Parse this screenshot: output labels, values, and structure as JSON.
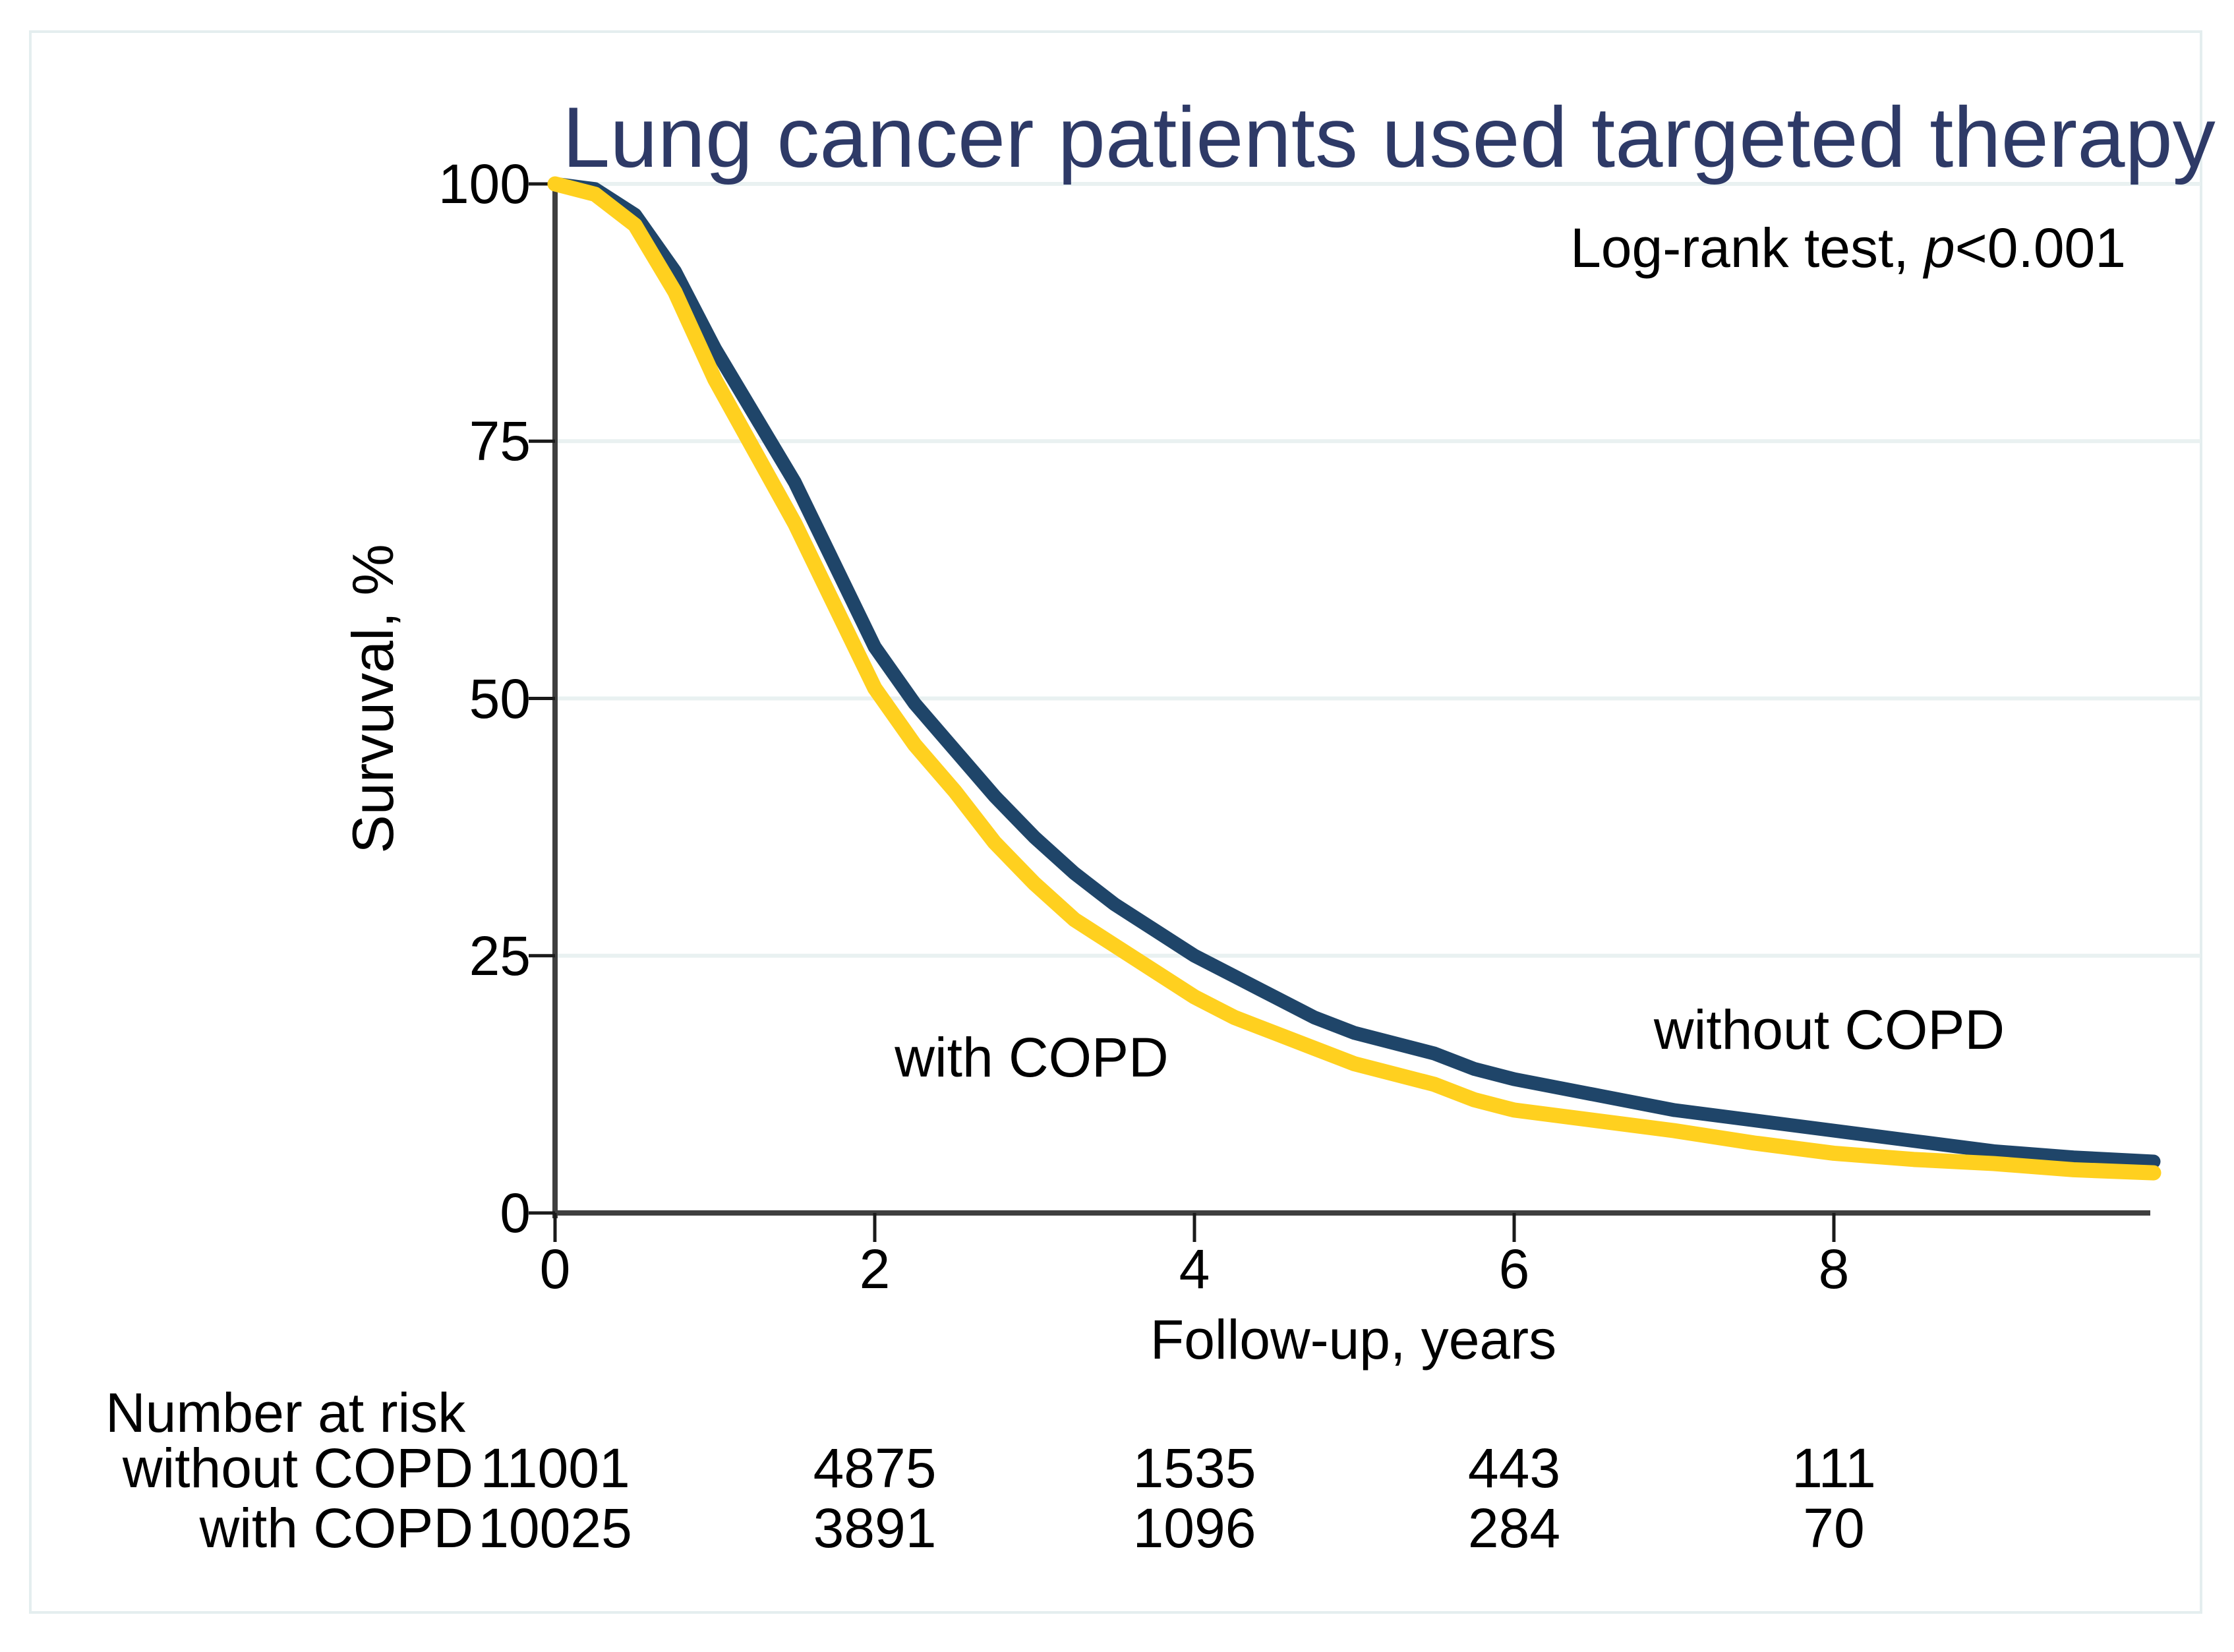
{
  "figure": {
    "title": "Lung cancer patients used targeted therapy",
    "annotation": {
      "prefix": "Log-rank test, ",
      "p": "p",
      "value": "<0.001"
    }
  },
  "y_axis": {
    "label": "Survuval, %",
    "ticks": [
      {
        "label": "100"
      },
      {
        "label": "75"
      },
      {
        "label": "50"
      },
      {
        "label": "25"
      },
      {
        "label": "0"
      }
    ]
  },
  "x_axis": {
    "label": "Follow-up, years",
    "ticks": [
      {
        "label": "0"
      },
      {
        "label": "2"
      },
      {
        "label": "4"
      },
      {
        "label": "6"
      },
      {
        "label": "8"
      }
    ]
  },
  "curve_labels": {
    "with": "with COPD",
    "without": "without COPD"
  },
  "risk_table": {
    "header": "Number at risk",
    "rows": [
      {
        "label": "without COPD",
        "values": [
          "11001",
          "4875",
          "1535",
          "443",
          "111"
        ]
      },
      {
        "label": "with COPD",
        "values": [
          "10025",
          "3891",
          "1096",
          "284",
          "70"
        ]
      }
    ]
  },
  "colors": {
    "without_copd": "#1F4569",
    "with_copd": "#FFD01F",
    "title": "#2E3A67",
    "grid": "#E9F1F1",
    "axis": "#3F3F3F",
    "tick": "#1A1A1A",
    "frame": "#E4EEEF"
  },
  "chart_data": {
    "type": "line",
    "title": "Lung cancer patients used targeted therapy",
    "subtitle": "Log-rank test, p<0.001",
    "xlabel": "Follow-up, years",
    "ylabel": "Survuval, %",
    "xlim": [
      0,
      10
    ],
    "ylim": [
      0,
      100
    ],
    "x_ticks": [
      0,
      2,
      4,
      6,
      8
    ],
    "y_ticks": [
      0,
      25,
      50,
      75,
      100
    ],
    "grid": "horizontal",
    "legend_position": "labels drawn inside plot area",
    "series": [
      {
        "name": "without COPD",
        "color": "#1F4569",
        "line_width": 21,
        "x": [
          0,
          0.25,
          0.5,
          0.75,
          1,
          1.25,
          1.5,
          1.75,
          2,
          2.25,
          2.5,
          2.75,
          3,
          3.25,
          3.5,
          3.75,
          4,
          4.25,
          4.5,
          4.75,
          5,
          5.25,
          5.5,
          5.75,
          6,
          6.5,
          7,
          7.5,
          8,
          8.5,
          9,
          9.5,
          10
        ],
        "y": [
          100,
          99.5,
          97,
          91.5,
          84,
          77.5,
          71,
          63,
          55,
          49.5,
          45,
          40.5,
          36.5,
          33,
          30,
          27.5,
          25,
          23,
          21,
          19,
          17.5,
          16.5,
          15.5,
          14,
          13,
          11.5,
          10,
          9,
          8,
          7,
          6,
          5.4,
          5
        ]
      },
      {
        "name": "with COPD",
        "color": "#FFD01F",
        "line_width": 23,
        "x": [
          0,
          0.25,
          0.5,
          0.75,
          1,
          1.25,
          1.5,
          1.75,
          2,
          2.25,
          2.5,
          2.75,
          3,
          3.25,
          3.5,
          3.75,
          4,
          4.25,
          4.5,
          4.75,
          5,
          5.25,
          5.5,
          5.75,
          6,
          6.5,
          7,
          7.5,
          8,
          8.5,
          9,
          9.5,
          10
        ],
        "y": [
          100,
          99,
          96,
          89.5,
          81,
          74,
          67,
          59,
          51,
          45.5,
          41,
          36,
          32,
          28.5,
          26,
          23.5,
          21,
          19,
          17.5,
          16,
          14.5,
          13.5,
          12.5,
          11,
          10,
          9,
          8,
          6.8,
          5.8,
          5.2,
          4.8,
          4.2,
          3.9
        ]
      }
    ],
    "number_at_risk": {
      "times": [
        0,
        2,
        4,
        6,
        8
      ],
      "without COPD": [
        11001,
        4875,
        1535,
        443,
        111
      ],
      "with COPD": [
        10025,
        3891,
        1096,
        284,
        70
      ]
    }
  }
}
